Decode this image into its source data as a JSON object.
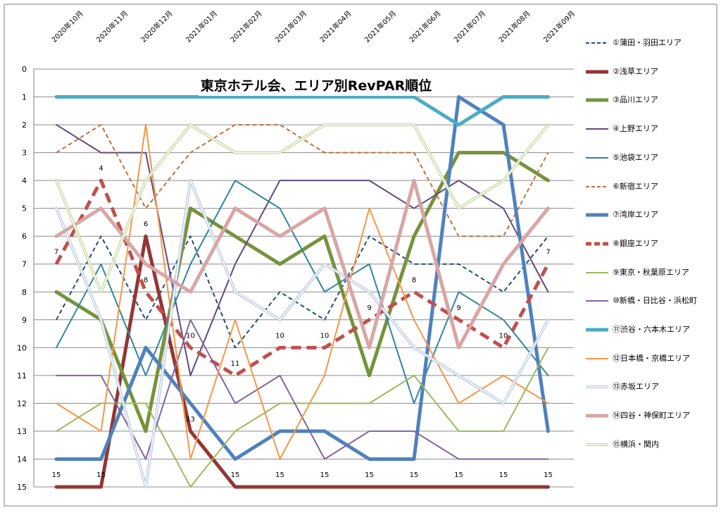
{
  "chart_data": {
    "type": "line",
    "title": "東京ホテル会、エリア別RevPAR順位",
    "categories": [
      "2020年10月",
      "2020年11月",
      "2020年12月",
      "2021年01月",
      "2021年02月",
      "2021年03月",
      "2021年04月",
      "2021年05月",
      "2021年06月",
      "2021年07月",
      "2021年08月",
      "2021年09月"
    ],
    "ylim": [
      0,
      15
    ],
    "y_reversed": true,
    "y_ticks": [
      0,
      1,
      2,
      3,
      4,
      5,
      6,
      7,
      8,
      9,
      10,
      11,
      12,
      13,
      14,
      15
    ],
    "grid": true,
    "legend_position": "right",
    "series": [
      {
        "name": "①蒲田・羽田エリア",
        "color": "#1f4e79",
        "style": "dashed-thin",
        "values": [
          9,
          6,
          9,
          6,
          10,
          8,
          9,
          6,
          7,
          7,
          8,
          6
        ]
      },
      {
        "name": "②浅草エリア",
        "color": "#943634",
        "style": "solid-thick",
        "values": [
          15,
          15,
          6,
          13,
          15,
          15,
          15,
          15,
          15,
          15,
          15,
          15
        ]
      },
      {
        "name": "③品川エリア",
        "color": "#76933c",
        "style": "solid-thick",
        "values": [
          8,
          9,
          13,
          5,
          6,
          7,
          6,
          11,
          6,
          3,
          3,
          4
        ]
      },
      {
        "name": "④上野エリア",
        "color": "#604a7b",
        "style": "solid-thin",
        "values": [
          2,
          3,
          3,
          11,
          7,
          4,
          4,
          4,
          5,
          4,
          5,
          8
        ]
      },
      {
        "name": "⑤池袋エリア",
        "color": "#31859c",
        "style": "solid-thin",
        "values": [
          10,
          7,
          11,
          7,
          4,
          5,
          8,
          7,
          12,
          8,
          9,
          11
        ]
      },
      {
        "name": "⑥新宿エリア",
        "color": "#c0723a",
        "style": "dashed-thin",
        "values": [
          3,
          2,
          5,
          3,
          2,
          2,
          3,
          3,
          3,
          6,
          6,
          3
        ]
      },
      {
        "name": "⑦湾岸エリア",
        "color": "#4f81bd",
        "style": "solid-thick",
        "values": [
          14,
          14,
          10,
          12,
          14,
          13,
          13,
          14,
          14,
          1,
          2,
          13
        ]
      },
      {
        "name": "⑧銀座エリア",
        "color": "#c0504d",
        "style": "dashed-thick",
        "values": [
          7,
          4,
          8,
          10,
          11,
          10,
          10,
          9,
          8,
          9,
          10,
          7
        ]
      },
      {
        "name": "⑨東京・秋葉原エリア",
        "color": "#9bbb59",
        "style": "solid-thin",
        "values": [
          13,
          12,
          12,
          15,
          13,
          12,
          12,
          12,
          11,
          13,
          13,
          10
        ]
      },
      {
        "name": "⑩新橋・日比谷・浜松町",
        "color": "#8064a2",
        "style": "solid-thin",
        "values": [
          11,
          11,
          14,
          9,
          12,
          11,
          14,
          13,
          13,
          14,
          14,
          14
        ]
      },
      {
        "name": "⑪渋谷・六本木エリア",
        "color": "#4bacc6",
        "style": "solid-thick",
        "values": [
          1,
          1,
          1,
          1,
          1,
          1,
          1,
          1,
          1,
          2,
          1,
          1
        ]
      },
      {
        "name": "⑫日本橋・京橋エリア",
        "color": "#f79646",
        "style": "solid-thin",
        "values": [
          12,
          13,
          2,
          14,
          9,
          14,
          11,
          5,
          9,
          12,
          11,
          12
        ]
      },
      {
        "name": "⑬赤坂エリア",
        "color": "#b8c7e0",
        "style": "double-thin",
        "values": [
          5,
          9,
          15,
          4,
          8,
          9,
          7,
          8,
          10,
          11,
          12,
          9
        ]
      },
      {
        "name": "⑭四谷・神保町エリア",
        "color": "#d9a5a5",
        "style": "solid-thick",
        "values": [
          6,
          5,
          7,
          8,
          5,
          6,
          5,
          10,
          4,
          10,
          7,
          5
        ]
      },
      {
        "name": "⑮横浜・関内",
        "color": "#c4d79b",
        "style": "double-thin",
        "values": [
          4,
          8,
          4,
          2,
          3,
          3,
          2,
          2,
          2,
          5,
          4,
          2
        ]
      }
    ],
    "data_labels": [
      {
        "series": "⑧銀座エリア",
        "values": [
          "7",
          "4",
          "8",
          "10",
          "11",
          "10",
          "10",
          "9",
          "8",
          "9",
          "10",
          "7"
        ]
      },
      {
        "series": "②浅草エリア",
        "values": [
          "15",
          "15",
          "6",
          "13",
          "15",
          "15",
          "15",
          "15",
          "15",
          "15",
          "15",
          "15"
        ]
      }
    ]
  }
}
